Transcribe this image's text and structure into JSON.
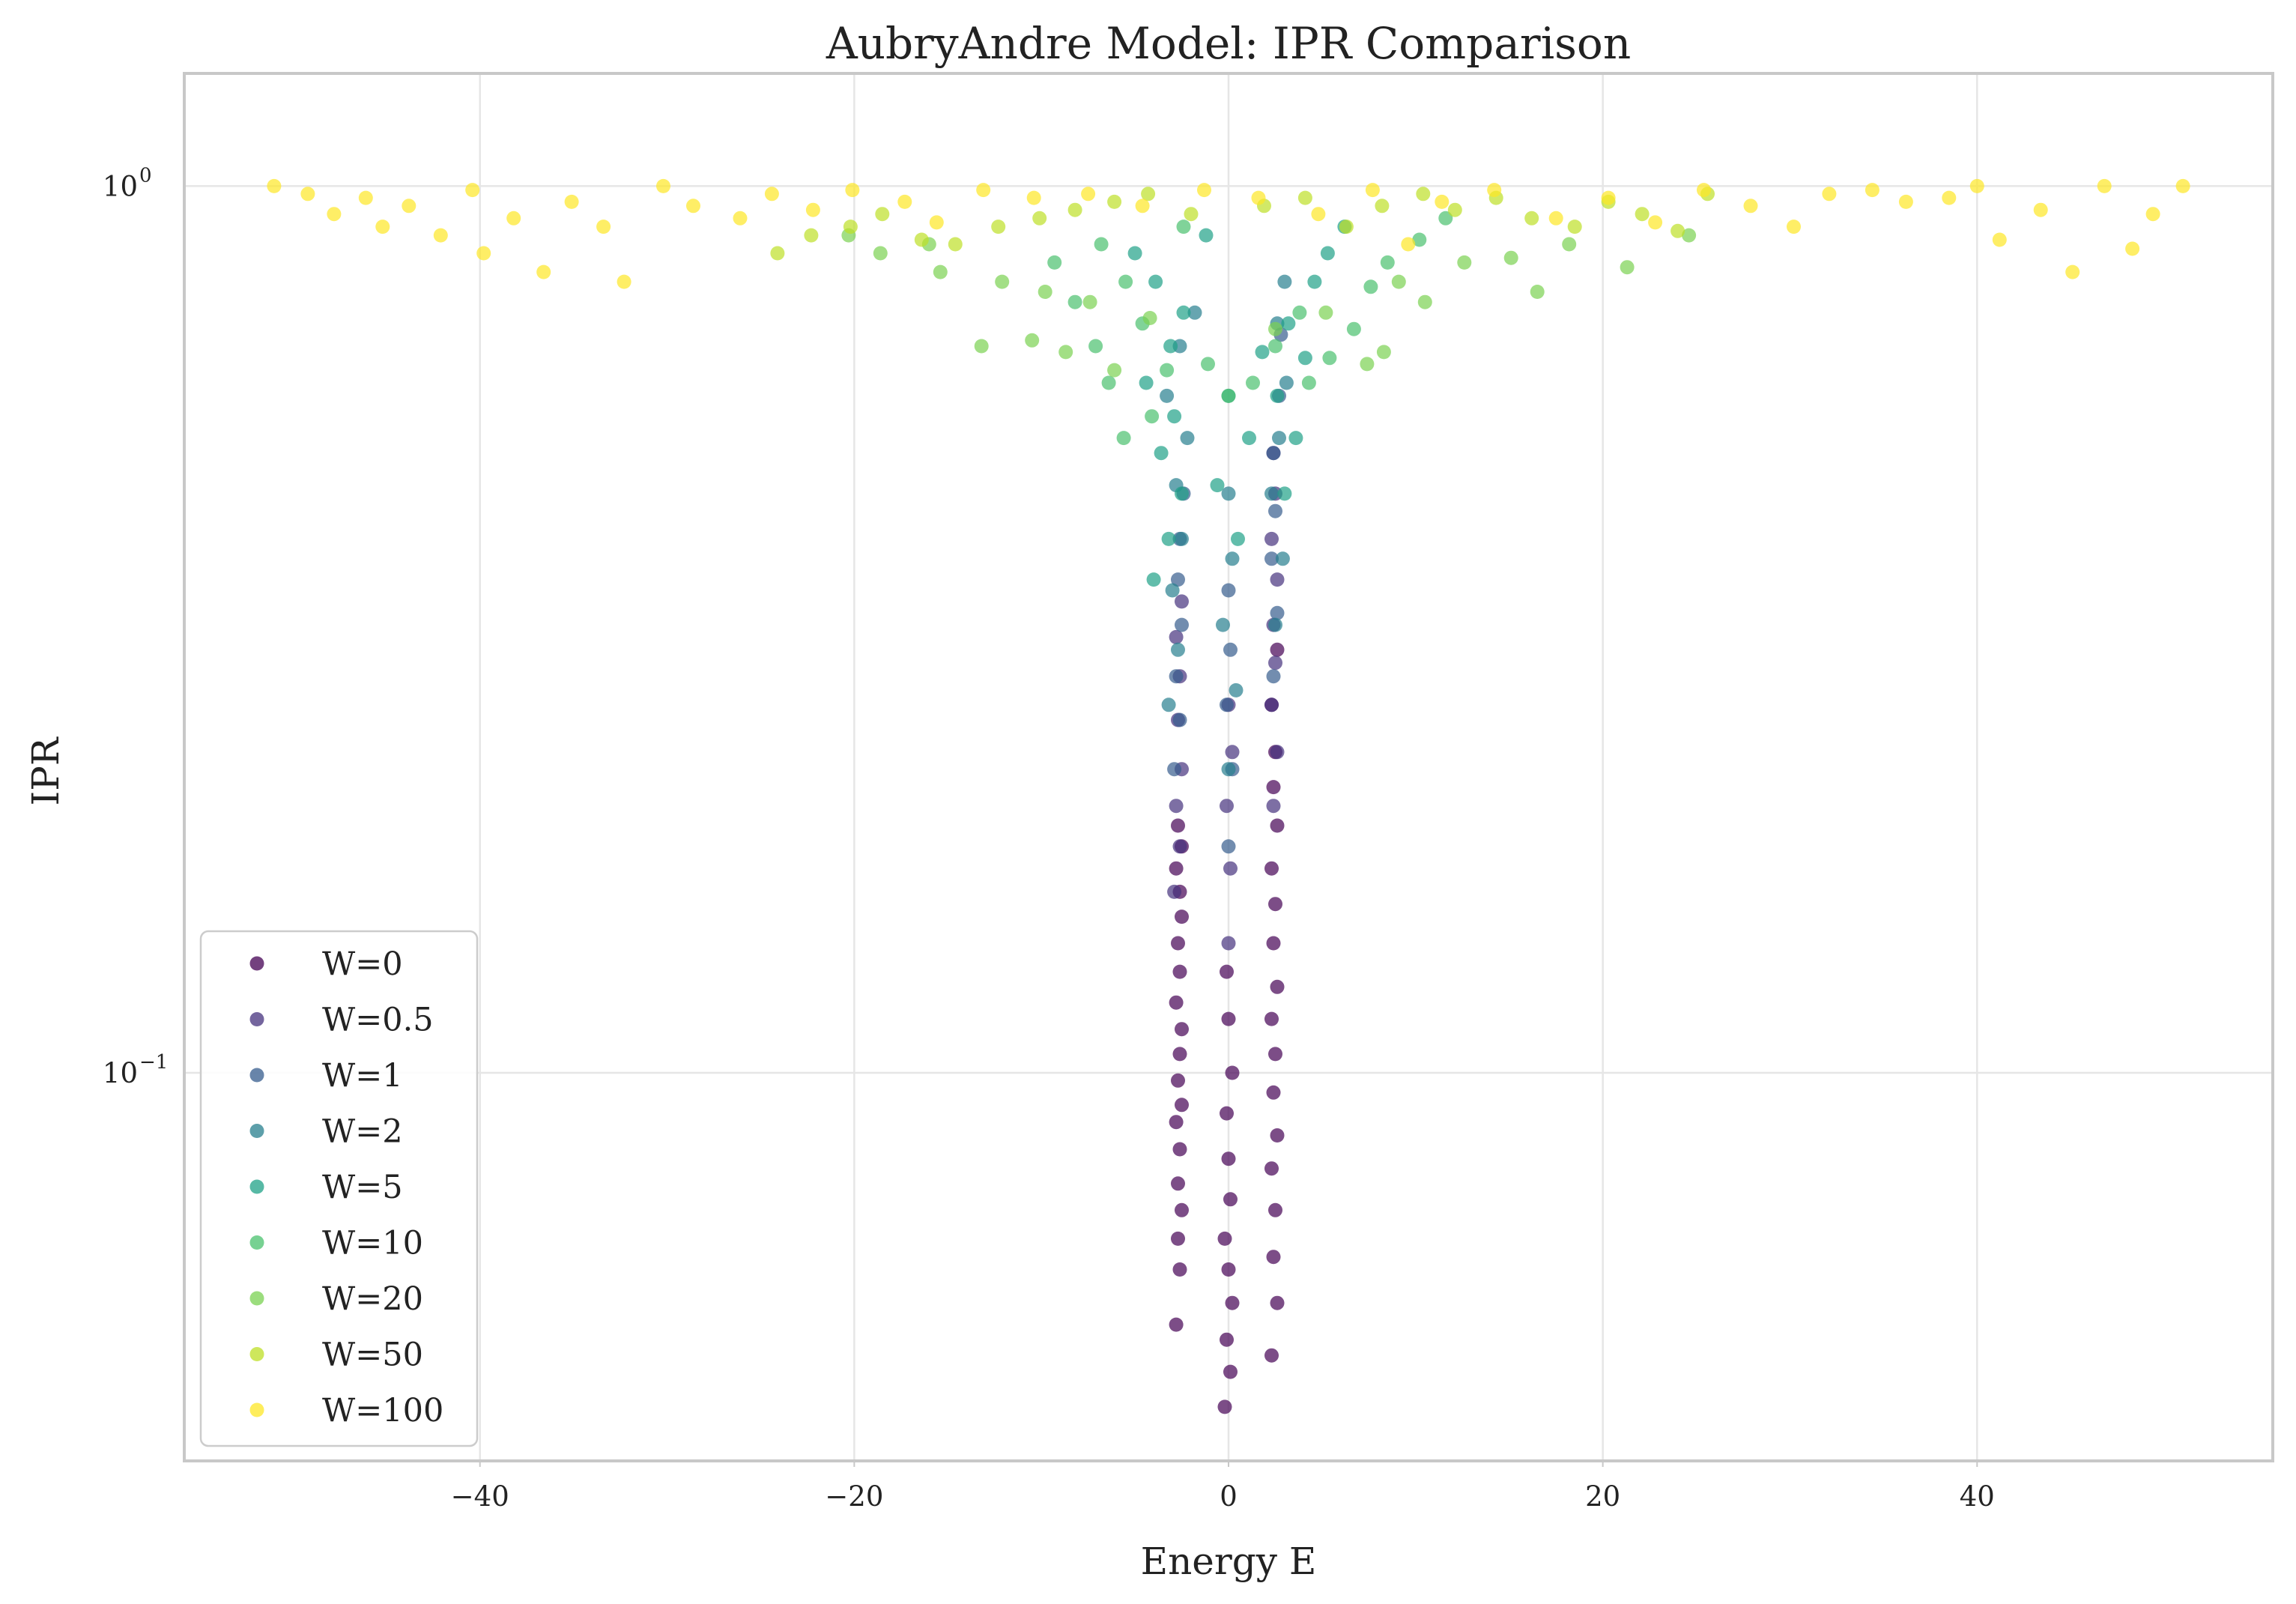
{
  "chart_data": {
    "type": "scatter",
    "title": "AubryAndre Model: IPR Comparison",
    "xlabel": "Energy E",
    "ylabel": "IPR",
    "xlim": [
      -55.8,
      55.8
    ],
    "ylim": [
      0.0365,
      1.34
    ],
    "yscale": "log",
    "grid": true,
    "legend_position": "lower-left",
    "x_ticks": [
      {
        "value": -40,
        "label": "−40"
      },
      {
        "value": -20,
        "label": "−20"
      },
      {
        "value": 0,
        "label": "0"
      },
      {
        "value": 20,
        "label": "20"
      },
      {
        "value": 40,
        "label": "40"
      }
    ],
    "y_ticks": [
      {
        "value": 1,
        "base": "10",
        "exp": "0"
      },
      {
        "value": 0.1,
        "base": "10",
        "exp": "−1"
      }
    ],
    "series": [
      {
        "name": "W=0",
        "color": "#440154",
        "points": [
          [
            -2.8,
            0.052
          ],
          [
            -2.6,
            0.06
          ],
          [
            -2.7,
            0.065
          ],
          [
            -2.5,
            0.07
          ],
          [
            -2.7,
            0.075
          ],
          [
            -2.6,
            0.082
          ],
          [
            -2.8,
            0.088
          ],
          [
            -2.5,
            0.092
          ],
          [
            -2.7,
            0.098
          ],
          [
            -2.6,
            0.105
          ],
          [
            -2.5,
            0.112
          ],
          [
            -2.8,
            0.12
          ],
          [
            -2.6,
            0.13
          ],
          [
            -2.7,
            0.14
          ],
          [
            -2.5,
            0.15
          ],
          [
            -2.6,
            0.16
          ],
          [
            -2.8,
            0.17
          ],
          [
            -2.5,
            0.18
          ],
          [
            -2.7,
            0.19
          ],
          [
            -0.2,
            0.042
          ],
          [
            0.1,
            0.046
          ],
          [
            -0.1,
            0.05
          ],
          [
            0.2,
            0.055
          ],
          [
            0.0,
            0.06
          ],
          [
            -0.2,
            0.065
          ],
          [
            0.1,
            0.072
          ],
          [
            0.0,
            0.08
          ],
          [
            -0.1,
            0.09
          ],
          [
            0.2,
            0.1
          ],
          [
            0.0,
            0.115
          ],
          [
            -0.1,
            0.13
          ],
          [
            2.3,
            0.048
          ],
          [
            2.6,
            0.055
          ],
          [
            2.4,
            0.062
          ],
          [
            2.5,
            0.07
          ],
          [
            2.3,
            0.078
          ],
          [
            2.6,
            0.085
          ],
          [
            2.4,
            0.095
          ],
          [
            2.5,
            0.105
          ],
          [
            2.3,
            0.115
          ],
          [
            2.6,
            0.125
          ],
          [
            2.4,
            0.14
          ],
          [
            2.5,
            0.155
          ],
          [
            2.3,
            0.17
          ],
          [
            2.6,
            0.19
          ],
          [
            2.4,
            0.21
          ],
          [
            2.5,
            0.23
          ],
          [
            2.3,
            0.26
          ],
          [
            2.6,
            0.3
          ]
        ]
      },
      {
        "name": "W=0.5",
        "color": "#46327e",
        "points": [
          [
            -2.9,
            0.16
          ],
          [
            -2.6,
            0.18
          ],
          [
            -2.8,
            0.2
          ],
          [
            -2.5,
            0.22
          ],
          [
            -2.7,
            0.25
          ],
          [
            -2.6,
            0.28
          ],
          [
            -2.8,
            0.31
          ],
          [
            -2.5,
            0.34
          ],
          [
            0.0,
            0.14
          ],
          [
            0.1,
            0.17
          ],
          [
            -0.1,
            0.2
          ],
          [
            0.2,
            0.23
          ],
          [
            0.0,
            0.26
          ],
          [
            2.4,
            0.2
          ],
          [
            2.6,
            0.23
          ],
          [
            2.3,
            0.26
          ],
          [
            2.5,
            0.29
          ],
          [
            2.4,
            0.32
          ],
          [
            2.6,
            0.36
          ],
          [
            2.3,
            0.4
          ],
          [
            2.5,
            0.45
          ],
          [
            2.4,
            0.5
          ]
        ]
      },
      {
        "name": "W=1",
        "color": "#365c8d",
        "points": [
          [
            -2.9,
            0.22
          ],
          [
            -2.6,
            0.25
          ],
          [
            -2.8,
            0.28
          ],
          [
            -2.5,
            0.32
          ],
          [
            -2.7,
            0.36
          ],
          [
            -2.6,
            0.4
          ],
          [
            -2.4,
            0.45
          ],
          [
            0.0,
            0.18
          ],
          [
            0.2,
            0.22
          ],
          [
            -0.1,
            0.26
          ],
          [
            0.1,
            0.3
          ],
          [
            0.0,
            0.35
          ],
          [
            2.4,
            0.28
          ],
          [
            2.6,
            0.33
          ],
          [
            2.3,
            0.38
          ],
          [
            2.5,
            0.43
          ],
          [
            2.4,
            0.5
          ],
          [
            2.7,
            0.58
          ],
          [
            2.8,
            0.68
          ]
        ]
      },
      {
        "name": "W=2",
        "color": "#277f8e",
        "points": [
          [
            -3.2,
            0.26
          ],
          [
            -2.7,
            0.3
          ],
          [
            -3.0,
            0.35
          ],
          [
            -2.5,
            0.4
          ],
          [
            -2.8,
            0.46
          ],
          [
            -2.2,
            0.52
          ],
          [
            -3.3,
            0.58
          ],
          [
            -2.6,
            0.66
          ],
          [
            -1.8,
            0.72
          ],
          [
            0.0,
            0.22
          ],
          [
            0.4,
            0.27
          ],
          [
            -0.3,
            0.32
          ],
          [
            0.2,
            0.38
          ],
          [
            0.0,
            0.45
          ],
          [
            2.5,
            0.32
          ],
          [
            2.9,
            0.38
          ],
          [
            2.3,
            0.45
          ],
          [
            2.7,
            0.52
          ],
          [
            3.1,
            0.6
          ],
          [
            2.6,
            0.7
          ],
          [
            3.0,
            0.78
          ]
        ]
      },
      {
        "name": "W=5",
        "color": "#1fa187",
        "points": [
          [
            -4.0,
            0.36
          ],
          [
            -3.2,
            0.4
          ],
          [
            -2.5,
            0.45
          ],
          [
            -3.6,
            0.5
          ],
          [
            -2.9,
            0.55
          ],
          [
            -4.4,
            0.6
          ],
          [
            -3.1,
            0.66
          ],
          [
            -2.4,
            0.72
          ],
          [
            -3.9,
            0.78
          ],
          [
            -5.0,
            0.84
          ],
          [
            -1.2,
            0.88
          ],
          [
            0.5,
            0.4
          ],
          [
            -0.6,
            0.46
          ],
          [
            1.1,
            0.52
          ],
          [
            0.0,
            0.58
          ],
          [
            1.8,
            0.65
          ],
          [
            3.0,
            0.45
          ],
          [
            3.6,
            0.52
          ],
          [
            2.6,
            0.58
          ],
          [
            4.1,
            0.64
          ],
          [
            3.2,
            0.7
          ],
          [
            4.6,
            0.78
          ],
          [
            5.3,
            0.84
          ],
          [
            6.2,
            0.9
          ]
        ]
      },
      {
        "name": "W=10",
        "color": "#4ac16d",
        "points": [
          [
            -5.6,
            0.52
          ],
          [
            -4.1,
            0.55
          ],
          [
            -6.4,
            0.6
          ],
          [
            -3.3,
            0.62
          ],
          [
            -7.1,
            0.66
          ],
          [
            -4.6,
            0.7
          ],
          [
            -8.2,
            0.74
          ],
          [
            -5.5,
            0.78
          ],
          [
            -9.3,
            0.82
          ],
          [
            -6.8,
            0.86
          ],
          [
            -2.4,
            0.9
          ],
          [
            0.0,
            0.58
          ],
          [
            1.3,
            0.6
          ],
          [
            -1.1,
            0.63
          ],
          [
            2.5,
            0.66
          ],
          [
            4.3,
            0.6
          ],
          [
            5.4,
            0.64
          ],
          [
            6.7,
            0.69
          ],
          [
            3.8,
            0.72
          ],
          [
            7.6,
            0.77
          ],
          [
            8.5,
            0.82
          ],
          [
            10.2,
            0.87
          ],
          [
            11.6,
            0.92
          ]
        ]
      },
      {
        "name": "W=20",
        "color": "#7ad151",
        "points": [
          [
            -13.2,
            0.66
          ],
          [
            -10.5,
            0.67
          ],
          [
            -8.7,
            0.65
          ],
          [
            -6.1,
            0.62
          ],
          [
            -15.4,
            0.8
          ],
          [
            -12.1,
            0.78
          ],
          [
            -9.8,
            0.76
          ],
          [
            -18.6,
            0.84
          ],
          [
            -16.0,
            0.86
          ],
          [
            -20.3,
            0.88
          ],
          [
            -7.4,
            0.74
          ],
          [
            -4.2,
            0.71
          ],
          [
            2.5,
            0.69
          ],
          [
            5.2,
            0.72
          ],
          [
            7.4,
            0.63
          ],
          [
            8.3,
            0.65
          ],
          [
            9.1,
            0.78
          ],
          [
            10.5,
            0.74
          ],
          [
            12.6,
            0.82
          ],
          [
            15.1,
            0.83
          ],
          [
            16.5,
            0.76
          ],
          [
            18.2,
            0.86
          ],
          [
            21.3,
            0.81
          ],
          [
            24.6,
            0.88
          ]
        ]
      },
      {
        "name": "W=50",
        "color": "#bddf26",
        "points": [
          [
            -24.1,
            0.84
          ],
          [
            -22.3,
            0.88
          ],
          [
            -20.2,
            0.9
          ],
          [
            -18.5,
            0.93
          ],
          [
            -16.4,
            0.87
          ],
          [
            -14.6,
            0.86
          ],
          [
            -12.3,
            0.9
          ],
          [
            -10.1,
            0.92
          ],
          [
            -8.2,
            0.94
          ],
          [
            -6.1,
            0.96
          ],
          [
            -4.3,
            0.98
          ],
          [
            -2.0,
            0.93
          ],
          [
            1.9,
            0.95
          ],
          [
            4.1,
            0.97
          ],
          [
            6.3,
            0.9
          ],
          [
            8.2,
            0.95
          ],
          [
            10.4,
            0.98
          ],
          [
            12.1,
            0.94
          ],
          [
            14.3,
            0.97
          ],
          [
            16.2,
            0.92
          ],
          [
            18.5,
            0.9
          ],
          [
            20.3,
            0.96
          ],
          [
            22.1,
            0.93
          ],
          [
            24.0,
            0.89
          ],
          [
            25.6,
            0.98
          ]
        ]
      },
      {
        "name": "W=100",
        "color": "#fde725",
        "points": [
          [
            -51.0,
            1.0
          ],
          [
            -49.2,
            0.98
          ],
          [
            -47.8,
            0.93
          ],
          [
            -46.1,
            0.97
          ],
          [
            -45.2,
            0.9
          ],
          [
            -43.8,
            0.95
          ],
          [
            -42.1,
            0.88
          ],
          [
            -40.4,
            0.99
          ],
          [
            -39.8,
            0.84
          ],
          [
            -38.2,
            0.92
          ],
          [
            -36.6,
            0.8
          ],
          [
            -35.1,
            0.96
          ],
          [
            -33.4,
            0.9
          ],
          [
            -32.3,
            0.78
          ],
          [
            -30.2,
            1.0
          ],
          [
            -28.6,
            0.95
          ],
          [
            -26.1,
            0.92
          ],
          [
            -24.4,
            0.98
          ],
          [
            -22.2,
            0.94
          ],
          [
            -20.1,
            0.99
          ],
          [
            -17.3,
            0.96
          ],
          [
            -15.6,
            0.91
          ],
          [
            -13.1,
            0.99
          ],
          [
            -10.4,
            0.97
          ],
          [
            -7.5,
            0.98
          ],
          [
            -4.6,
            0.95
          ],
          [
            -1.3,
            0.99
          ],
          [
            1.6,
            0.97
          ],
          [
            4.8,
            0.93
          ],
          [
            7.7,
            0.99
          ],
          [
            9.6,
            0.86
          ],
          [
            11.4,
            0.96
          ],
          [
            14.2,
            0.99
          ],
          [
            17.5,
            0.92
          ],
          [
            20.3,
            0.97
          ],
          [
            22.8,
            0.91
          ],
          [
            25.4,
            0.99
          ],
          [
            27.9,
            0.95
          ],
          [
            30.2,
            0.9
          ],
          [
            32.1,
            0.98
          ],
          [
            34.4,
            0.99
          ],
          [
            36.2,
            0.96
          ],
          [
            38.5,
            0.97
          ],
          [
            40.0,
            1.0
          ],
          [
            41.2,
            0.87
          ],
          [
            43.4,
            0.94
          ],
          [
            45.1,
            0.8
          ],
          [
            46.8,
            1.0
          ],
          [
            48.3,
            0.85
          ],
          [
            49.4,
            0.93
          ],
          [
            51.0,
            1.0
          ]
        ]
      }
    ]
  }
}
